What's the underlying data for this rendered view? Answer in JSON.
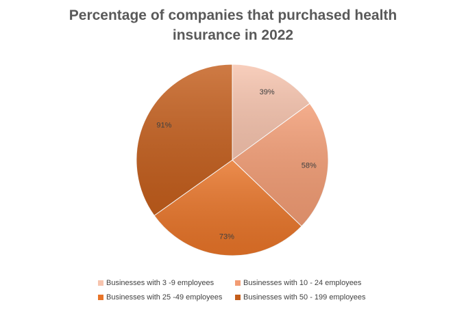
{
  "chart_data": {
    "type": "pie",
    "title": "Percentage of companies that purchased health insurance in 2022",
    "categories": [
      "Businesses with 3 -9 employees",
      "Businesses with 10 - 24 employees",
      "Businesses with 25 -49 employees",
      "Businesses with 50 - 199 employees"
    ],
    "values": [
      39,
      58,
      73,
      91
    ],
    "data_labels": [
      "39%",
      "58%",
      "73%",
      "91%"
    ],
    "colors": [
      "#F7C4AE",
      "#F29C74",
      "#E87428",
      "#C45E1C"
    ],
    "legend_position": "bottom"
  }
}
